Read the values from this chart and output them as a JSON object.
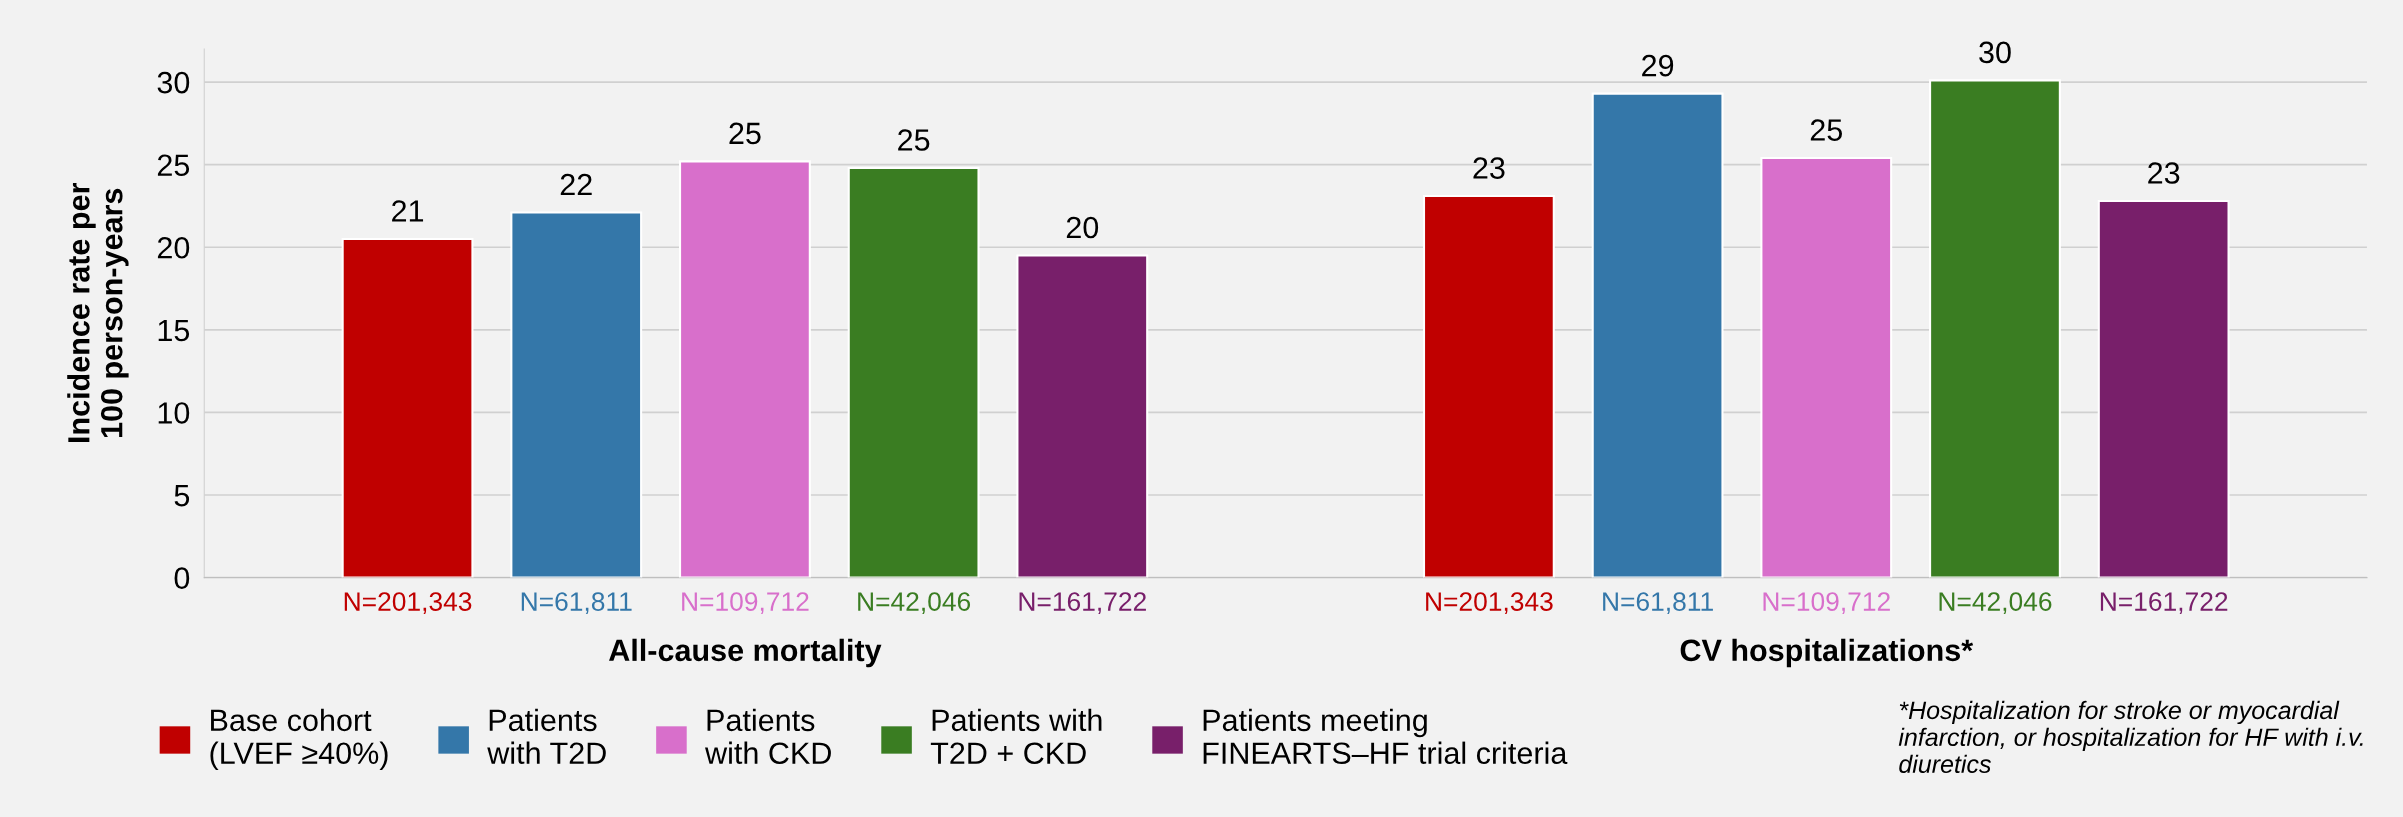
{
  "chart_data": {
    "type": "bar",
    "ylabel": "Incidence rate per\n100 person-years",
    "categories": [
      "All-cause mortality",
      "CV hospitalizations*"
    ],
    "series": [
      {
        "name": "Base cohort\n(LVEF ≥40%)",
        "color": "#c00000",
        "values": [
          20.5,
          23.1
        ],
        "value_labels": [
          "21",
          "23"
        ]
      },
      {
        "name": "Patients\nwith T2D",
        "color": "#3477a9",
        "values": [
          22.1,
          29.3
        ],
        "value_labels": [
          "22",
          "29"
        ]
      },
      {
        "name": "Patients\nwith CKD",
        "color": "#d86fcb",
        "values": [
          25.2,
          25.4
        ],
        "value_labels": [
          "25",
          "25"
        ]
      },
      {
        "name": "Patients with\nT2D + CKD",
        "color": "#3a7d22",
        "values": [
          24.8,
          30.1
        ],
        "value_labels": [
          "25",
          "30"
        ]
      },
      {
        "name": "Patients meeting\nFINEARTS–HF trial criteria",
        "color": "#781f6a",
        "values": [
          19.5,
          22.8
        ],
        "value_labels": [
          "20",
          "23"
        ]
      }
    ],
    "ylim": [
      0,
      32
    ],
    "yticks": [
      0,
      5,
      10,
      15,
      20,
      25,
      30
    ],
    "grid": "y",
    "legend": "bottom",
    "annotations": [
      "N=201,343",
      "N=61,811",
      "N=109,712",
      "N=42,046",
      "N=161,722",
      "N=201,343",
      "N=61,811",
      "N=109,712",
      "N=42,046",
      "N=161,722",
      "*Hospitalization for stroke or myocardial infarction, or hospitalization for HF with i.v. diuretics"
    ]
  }
}
